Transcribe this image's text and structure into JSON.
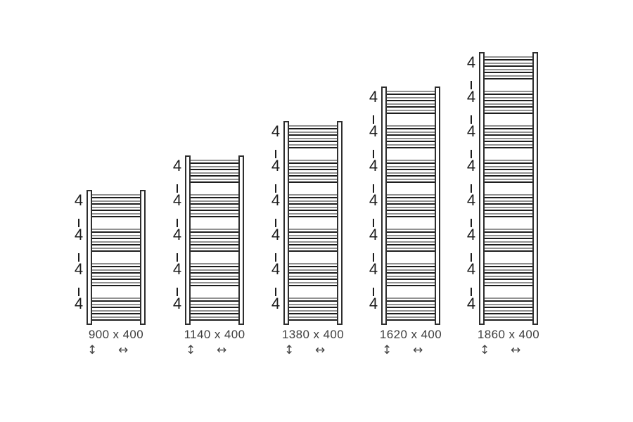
{
  "diagram": {
    "description": "towel-radiator size range diagram",
    "radiators": [
      {
        "size_label": "900 x 400",
        "group_count": 4,
        "tubes_per_group": 4,
        "group_labels": [
          "4",
          "4",
          "4",
          "4"
        ]
      },
      {
        "size_label": "1140 x 400",
        "group_count": 5,
        "tubes_per_group": 4,
        "group_labels": [
          "4",
          "4",
          "4",
          "4",
          "4"
        ]
      },
      {
        "size_label": "1380 x 400",
        "group_count": 6,
        "tubes_per_group": 4,
        "group_labels": [
          "4",
          "4",
          "4",
          "4",
          "4",
          "4"
        ]
      },
      {
        "size_label": "1620 x 400",
        "group_count": 7,
        "tubes_per_group": 4,
        "group_labels": [
          "4",
          "4",
          "4",
          "4",
          "4",
          "4",
          "4"
        ]
      },
      {
        "size_label": "1860 x 400",
        "group_count": 8,
        "tubes_per_group": 4,
        "group_labels": [
          "4",
          "4",
          "4",
          "4",
          "4",
          "4",
          "4",
          "4"
        ]
      }
    ],
    "icons": {
      "height_arrow": "↕",
      "width_arrow": "↔"
    },
    "colors": {
      "background": "#ffffff",
      "rail_outline": "#2e2e2e",
      "tube_top_edge": "#919191",
      "tube_bottom_edge": "#1e1e1e",
      "annotation_text": "#1c1c1c",
      "size_label_text": "#3e3e3e",
      "arrow": "#454545"
    }
  }
}
